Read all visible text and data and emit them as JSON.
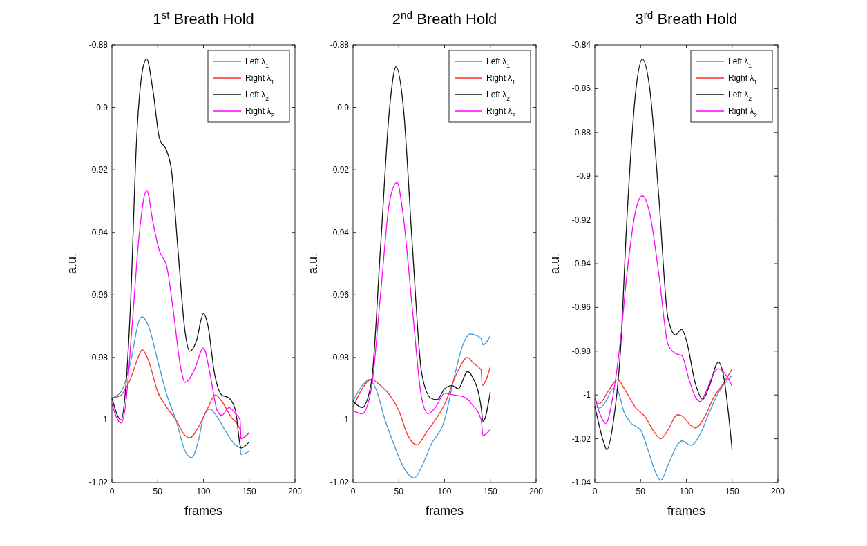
{
  "chart_data": [
    {
      "type": "line",
      "title": "1$^{st}$ Breath Hold",
      "xlabel": "frames",
      "ylabel": "a.u.",
      "xlim": [
        0,
        200
      ],
      "xticks": [
        0,
        50,
        100,
        150,
        200
      ],
      "ylim": [
        -1.02,
        -0.88
      ],
      "yticks": [
        -1.02,
        -1,
        -0.98,
        -0.96,
        -0.94,
        -0.92,
        -0.9,
        -0.88
      ],
      "legend": "top right",
      "series": [
        {
          "name": "Left λ$_{1}$",
          "color": "#3d9ad6",
          "x": [
            0,
            10,
            20,
            30,
            33,
            40,
            50,
            60,
            70,
            80,
            87,
            95,
            100,
            107,
            115,
            125,
            135,
            140,
            141,
            150
          ],
          "values": [
            -0.993,
            -0.991,
            -0.982,
            -0.968,
            -0.967,
            -0.97,
            -0.981,
            -0.992,
            -1,
            -1.01,
            -1.012,
            -1.006,
            -0.999,
            -0.9965,
            -0.999,
            -1.004,
            -1.008,
            -1.009,
            -1.011,
            -1.01
          ]
        },
        {
          "name": "Right λ$_{1}$",
          "color": "#ff2a2a",
          "x": [
            0,
            10,
            20,
            30,
            33,
            40,
            50,
            60,
            70,
            80,
            85,
            95,
            105,
            113,
            120,
            130,
            140,
            141,
            150
          ],
          "values": [
            -0.993,
            -0.992,
            -0.987,
            -0.979,
            -0.9775,
            -0.981,
            -0.991,
            -0.996,
            -1,
            -1.005,
            -1.0057,
            -1.002,
            -0.996,
            -0.992,
            -0.994,
            -0.999,
            -1.003,
            -1.006,
            -1.004
          ]
        },
        {
          "name": "Left λ$_{2}$",
          "color": "#111111",
          "x": [
            0,
            10,
            15,
            20,
            27,
            35,
            38,
            45,
            52,
            60,
            65,
            72,
            80,
            85,
            92,
            100,
            105,
            112,
            120,
            128,
            135,
            140,
            141,
            150
          ],
          "values": [
            -0.993,
            -1,
            -0.99,
            -0.965,
            -0.91,
            -0.886,
            -0.8845,
            -0.895,
            -0.91,
            -0.914,
            -0.92,
            -0.945,
            -0.972,
            -0.978,
            -0.975,
            -0.966,
            -0.97,
            -0.985,
            -0.992,
            -0.993,
            -0.997,
            -1.008,
            -1.009,
            -1.007
          ]
        },
        {
          "name": "Right λ$_{2}$",
          "color": "#ff00ff",
          "x": [
            0,
            10,
            15,
            22,
            30,
            38,
            45,
            52,
            60,
            67,
            75,
            80,
            90,
            100,
            107,
            115,
            120,
            128,
            135,
            140,
            141,
            150
          ],
          "values": [
            -0.995,
            -1.001,
            -0.995,
            -0.97,
            -0.94,
            -0.9265,
            -0.937,
            -0.946,
            -0.951,
            -0.965,
            -0.983,
            -0.988,
            -0.984,
            -0.977,
            -0.985,
            -0.997,
            -0.9985,
            -0.996,
            -0.998,
            -1,
            -1.006,
            -1.004
          ]
        }
      ]
    },
    {
      "type": "line",
      "title": "2$^{nd}$ Breath Hold",
      "xlabel": "frames",
      "ylabel": "a.u.",
      "xlim": [
        0,
        200
      ],
      "xticks": [
        0,
        50,
        100,
        150,
        200
      ],
      "ylim": [
        -1.02,
        -0.88
      ],
      "yticks": [
        -1.02,
        -1,
        -0.98,
        -0.96,
        -0.94,
        -0.92,
        -0.9,
        -0.88
      ],
      "legend": "top right",
      "series": [
        {
          "name": "Left λ$_{1}$",
          "color": "#3d9ad6",
          "x": [
            0,
            10,
            18,
            25,
            35,
            45,
            55,
            67,
            75,
            85,
            100,
            110,
            120,
            128,
            135,
            140,
            142,
            150
          ],
          "values": [
            -0.994,
            -0.989,
            -0.987,
            -0.99,
            -1,
            -1.008,
            -1.015,
            -1.0185,
            -1.015,
            -1.008,
            -1,
            -0.987,
            -0.976,
            -0.9725,
            -0.973,
            -0.974,
            -0.976,
            -0.973
          ]
        },
        {
          "name": "Right λ$_{1}$",
          "color": "#ff2a2a",
          "x": [
            0,
            10,
            20,
            30,
            40,
            50,
            60,
            70,
            80,
            100,
            115,
            125,
            132,
            140,
            141,
            150
          ],
          "values": [
            -0.996,
            -0.99,
            -0.987,
            -0.989,
            -0.992,
            -0.997,
            -1.005,
            -1.008,
            -1.004,
            -0.995,
            -0.984,
            -0.98,
            -0.982,
            -0.984,
            -0.989,
            -0.983
          ]
        },
        {
          "name": "Left λ$_{2}$",
          "color": "#111111",
          "x": [
            0,
            10,
            20,
            30,
            40,
            47,
            55,
            65,
            75,
            85,
            92,
            100,
            108,
            115,
            125,
            130,
            140,
            142,
            150
          ],
          "values": [
            -0.994,
            -0.996,
            -0.988,
            -0.945,
            -0.9,
            -0.887,
            -0.9,
            -0.945,
            -0.985,
            -0.993,
            -0.9935,
            -0.99,
            -0.989,
            -0.99,
            -0.9845,
            -0.986,
            -0.996,
            -1.0005,
            -0.991
          ]
        },
        {
          "name": "Right λ$_{2}$",
          "color": "#ff00ff",
          "x": [
            0,
            10,
            20,
            30,
            40,
            48,
            55,
            65,
            75,
            82,
            90,
            100,
            110,
            120,
            130,
            140,
            142,
            150
          ],
          "values": [
            -0.997,
            -0.998,
            -0.99,
            -0.96,
            -0.93,
            -0.924,
            -0.935,
            -0.965,
            -0.993,
            -0.998,
            -0.996,
            -0.9915,
            -0.992,
            -0.9925,
            -0.995,
            -1,
            -1.005,
            -1.003
          ]
        }
      ]
    },
    {
      "type": "line",
      "title": "3$^{rd}$ Breath Hold",
      "xlabel": "frames",
      "ylabel": "a.u.",
      "xlim": [
        0,
        200
      ],
      "xticks": [
        0,
        50,
        100,
        150,
        200
      ],
      "ylim": [
        -1.04,
        -0.84
      ],
      "yticks": [
        -1.04,
        -1.02,
        -1,
        -0.98,
        -0.96,
        -0.94,
        -0.92,
        -0.9,
        -0.88,
        -0.86,
        -0.84
      ],
      "legend": "top right",
      "series": [
        {
          "name": "Left λ$_{1}$",
          "color": "#3d9ad6",
          "x": [
            0,
            5,
            12,
            20,
            25,
            32,
            40,
            50,
            58,
            66,
            72,
            80,
            90,
            95,
            105,
            115,
            125,
            135,
            150
          ],
          "values": [
            -1.005,
            -1.006,
            -1.003,
            -0.997,
            -0.998,
            -1.008,
            -1.013,
            -1.016,
            -1.025,
            -1.035,
            -1.039,
            -1.032,
            -1.023,
            -1.021,
            -1.023,
            -1.018,
            -1.008,
            -0.999,
            -0.991
          ]
        },
        {
          "name": "Right λ$_{1}$",
          "color": "#ff2a2a",
          "x": [
            0,
            5,
            15,
            25,
            32,
            45,
            55,
            65,
            72,
            80,
            90,
            95,
            105,
            110,
            120,
            130,
            140,
            150
          ],
          "values": [
            -1.002,
            -1.004,
            -0.998,
            -0.993,
            -0.997,
            -1.006,
            -1.01,
            -1.017,
            -1.02,
            -1.016,
            -1.009,
            -1.0095,
            -1.014,
            -1.015,
            -1.01,
            -1.001,
            -0.995,
            -0.988
          ]
        },
        {
          "name": "Left λ$_{2}$",
          "color": "#111111",
          "x": [
            0,
            10,
            13,
            20,
            28,
            35,
            45,
            52,
            60,
            70,
            80,
            88,
            95,
            100,
            110,
            118,
            125,
            135,
            140,
            150
          ],
          "values": [
            -1.005,
            -1.022,
            -1.025,
            -1.013,
            -0.98,
            -0.92,
            -0.86,
            -0.8465,
            -0.86,
            -0.91,
            -0.965,
            -0.9725,
            -0.97,
            -0.975,
            -0.995,
            -1.002,
            -0.996,
            -0.985,
            -0.99,
            -1.025
          ]
        },
        {
          "name": "Right λ$_{2}$",
          "color": "#ff00ff",
          "x": [
            0,
            5,
            12,
            20,
            28,
            35,
            45,
            52,
            60,
            70,
            80,
            88,
            95,
            103,
            110,
            115,
            122,
            130,
            135,
            145,
            150
          ],
          "values": [
            -1.001,
            -1.008,
            -1.013,
            -1,
            -0.975,
            -0.945,
            -0.915,
            -0.909,
            -0.917,
            -0.945,
            -0.977,
            -0.981,
            -0.982,
            -0.993,
            -1.001,
            -1.003,
            -0.998,
            -0.99,
            -0.988,
            -0.992,
            -0.996
          ]
        }
      ]
    }
  ]
}
